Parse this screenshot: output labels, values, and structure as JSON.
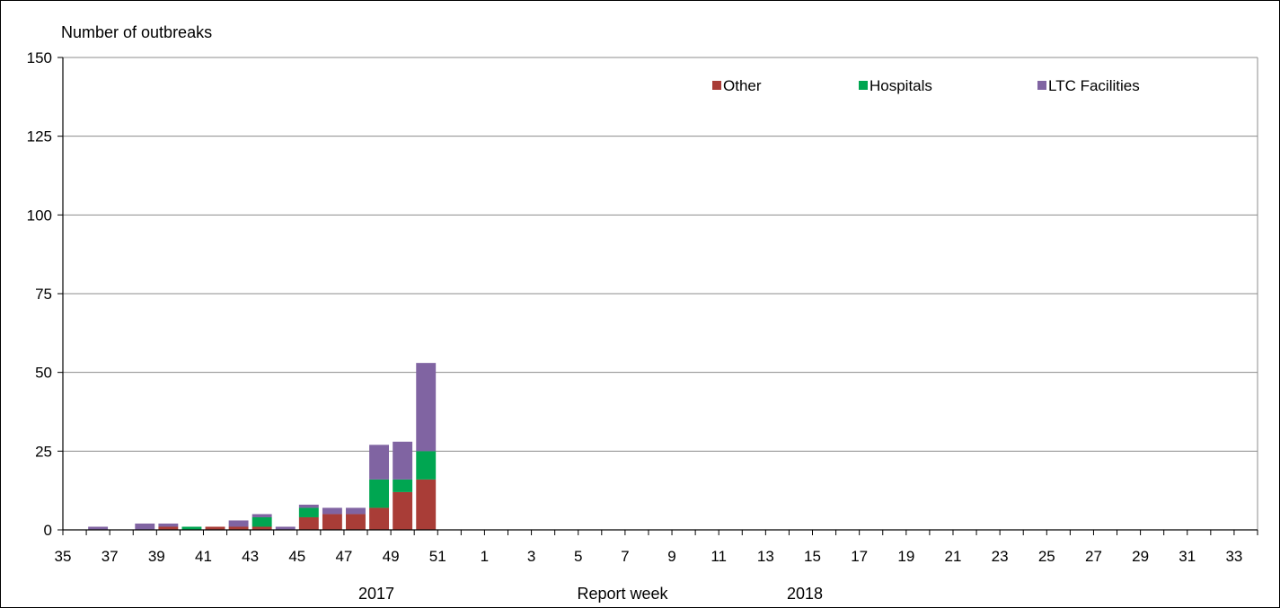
{
  "chart_data": {
    "type": "bar",
    "stacked": true,
    "ylabel": "Number of outbreaks",
    "xlabel": "Report week",
    "year_labels": [
      "2017",
      "2018"
    ],
    "ylim": [
      0,
      150
    ],
    "yticks": [
      0,
      25,
      50,
      75,
      100,
      125,
      150
    ],
    "grid": true,
    "legend_position": "top-right",
    "x": [
      35,
      36,
      37,
      38,
      39,
      40,
      41,
      42,
      43,
      44,
      45,
      46,
      47,
      48,
      49,
      50,
      51,
      52,
      1,
      2,
      3,
      4,
      5,
      6,
      7,
      8,
      9,
      10,
      11,
      12,
      13,
      14,
      15,
      16,
      17,
      18,
      19,
      20,
      21,
      22,
      23,
      24,
      25,
      26,
      27,
      28,
      29,
      30,
      31,
      32,
      33
    ],
    "x_tick_labels": [
      "35",
      "37",
      "39",
      "41",
      "43",
      "45",
      "47",
      "49",
      "51",
      "1",
      "3",
      "5",
      "7",
      "9",
      "11",
      "13",
      "15",
      "17",
      "19",
      "21",
      "23",
      "25",
      "27",
      "29",
      "31",
      "33"
    ],
    "series": [
      {
        "name": "Other",
        "color": "#A93D37",
        "values": [
          0,
          0,
          0,
          0,
          1,
          0,
          1,
          1,
          1,
          0,
          4,
          5,
          5,
          7,
          12,
          16,
          0,
          0,
          0,
          0,
          0,
          0,
          0,
          0,
          0,
          0,
          0,
          0,
          0,
          0,
          0,
          0,
          0,
          0,
          0,
          0,
          0,
          0,
          0,
          0,
          0,
          0,
          0,
          0,
          0,
          0,
          0,
          0,
          0,
          0,
          0
        ]
      },
      {
        "name": "Hospitals",
        "color": "#00A651",
        "values": [
          0,
          0,
          0,
          0,
          0,
          1,
          0,
          0,
          3,
          0,
          3,
          0,
          0,
          9,
          4,
          9,
          0,
          0,
          0,
          0,
          0,
          0,
          0,
          0,
          0,
          0,
          0,
          0,
          0,
          0,
          0,
          0,
          0,
          0,
          0,
          0,
          0,
          0,
          0,
          0,
          0,
          0,
          0,
          0,
          0,
          0,
          0,
          0,
          0,
          0,
          0
        ]
      },
      {
        "name": "LTC Facilities",
        "color": "#8064A2",
        "values": [
          0,
          1,
          0,
          2,
          1,
          0,
          0,
          2,
          1,
          1,
          1,
          2,
          2,
          11,
          12,
          28,
          0,
          0,
          0,
          0,
          0,
          0,
          0,
          0,
          0,
          0,
          0,
          0,
          0,
          0,
          0,
          0,
          0,
          0,
          0,
          0,
          0,
          0,
          0,
          0,
          0,
          0,
          0,
          0,
          0,
          0,
          0,
          0,
          0,
          0,
          0
        ]
      }
    ]
  }
}
